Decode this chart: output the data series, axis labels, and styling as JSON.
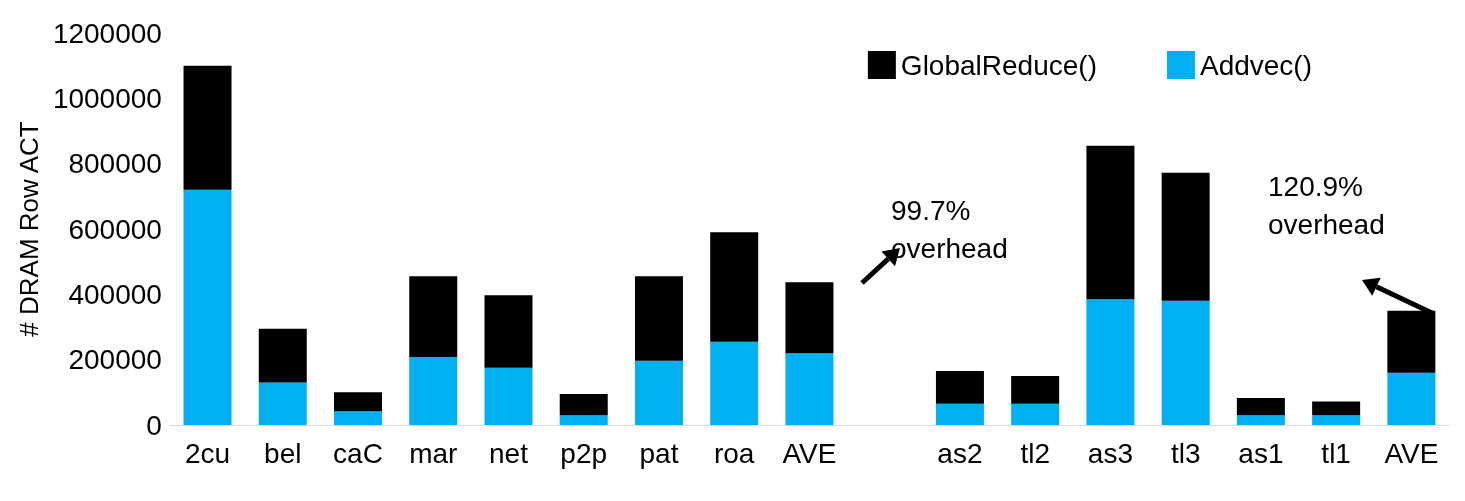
{
  "chart_data": {
    "type": "bar",
    "stacked": true,
    "ylabel": "# DRAM Row ACT",
    "categories": [
      "2cu",
      "bel",
      "caC",
      "mar",
      "net",
      "p2p",
      "pat",
      "roa",
      "AVE",
      null,
      "as2",
      "tl2",
      "as3",
      "tl3",
      "as1",
      "tl1",
      "AVE"
    ],
    "series": [
      {
        "name": "Addvec()",
        "color": "#00b0f0",
        "values": [
          720000,
          130000,
          42000,
          208000,
          175000,
          30000,
          197000,
          255000,
          220000,
          null,
          65000,
          65000,
          385000,
          380000,
          30000,
          30000,
          160000
        ]
      },
      {
        "name": "GlobalReduce()",
        "color": "#000000",
        "values": [
          380000,
          165000,
          58000,
          247000,
          222000,
          65000,
          258000,
          335000,
          217000,
          null,
          100000,
          85000,
          470000,
          392000,
          53000,
          42000,
          190000
        ]
      }
    ],
    "ylim": [
      0,
      1200000
    ],
    "yticks": [
      0,
      200000,
      400000,
      600000,
      800000,
      1000000,
      1200000
    ],
    "grid": false,
    "legend": "top right",
    "annotations": [
      "99.7%\noverhead",
      "120.9%\noverhead"
    ]
  }
}
